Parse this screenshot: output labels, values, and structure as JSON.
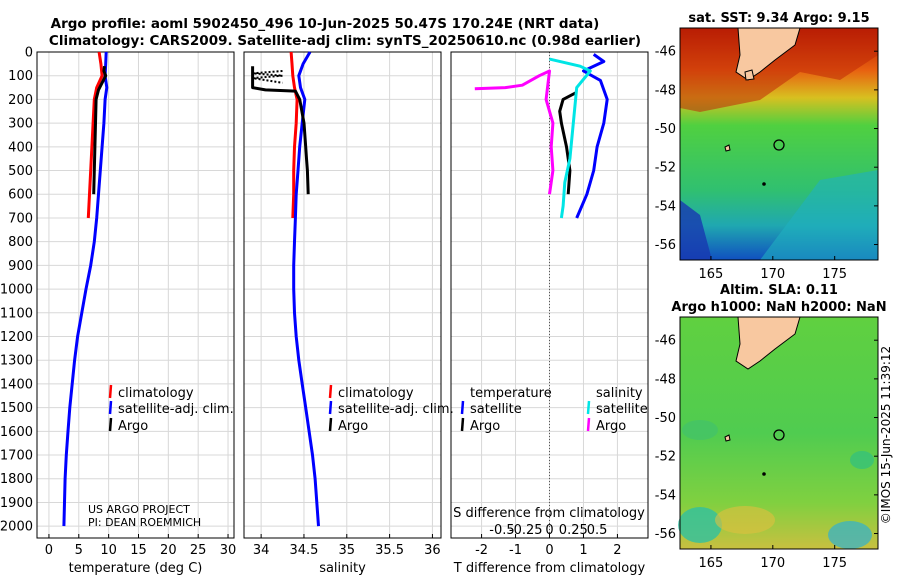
{
  "title": {
    "line1": "Argo profile: aoml 5902450_496 10-Jun-2025 50.47S 170.24E (NRT data)",
    "line2": "Climatology: CARS2009. Satellite-adj clim: synTS_20250610.nc (0.98d earlier)"
  },
  "credit": {
    "project": "US ARGO PROJECT",
    "pi": "PI: DEAN ROEMMICH"
  },
  "stamp": "©IMOS 15-Jun-2025 11:39:12",
  "colors": {
    "climatology": "#ff0000",
    "satellite": "#0000ff",
    "argo": "#000000",
    "sat_s": "#00e5e5",
    "argo_s": "#ff00ff"
  },
  "chart_data": [
    {
      "type": "line",
      "name": "temperature-profile",
      "xlabel": "temperature (deg C)",
      "ylabel": "",
      "xlim": [
        -2,
        31
      ],
      "ylim": [
        2050,
        0
      ],
      "xticks": [
        0,
        5,
        10,
        15,
        20,
        25,
        30
      ],
      "yticks": [
        0,
        100,
        200,
        300,
        400,
        500,
        600,
        700,
        800,
        900,
        1000,
        1100,
        1200,
        1300,
        1400,
        1500,
        1600,
        1700,
        1800,
        1900,
        2000
      ],
      "grid": true,
      "legend": [
        "climatology",
        "satellite-adj. clim.",
        "Argo"
      ],
      "series": [
        {
          "name": "climatology",
          "color": "#ff0000",
          "x": [
            8.4,
            8.7,
            8.9,
            8.0,
            7.6,
            7.4,
            7.2,
            7.0,
            6.8,
            6.6
          ],
          "y": [
            0,
            50,
            100,
            150,
            200,
            300,
            400,
            500,
            600,
            700
          ]
        },
        {
          "name": "satellite-adj. clim.",
          "color": "#0000ff",
          "x": [
            9.6,
            9.5,
            9.4,
            9.7,
            9.4,
            9.2,
            8.9,
            8.6,
            8.3,
            8.0,
            7.6,
            7.0,
            6.2,
            5.5,
            4.8,
            4.3,
            3.9,
            3.5,
            3.2,
            2.9,
            2.7,
            2.5
          ],
          "y": [
            0,
            50,
            100,
            150,
            200,
            300,
            400,
            500,
            600,
            700,
            800,
            900,
            1000,
            1100,
            1200,
            1300,
            1400,
            1500,
            1600,
            1700,
            1800,
            2000
          ]
        },
        {
          "name": "Argo",
          "color": "#000000",
          "x": [
            9.3,
            9.2,
            9.5,
            8.3,
            7.9,
            7.8,
            7.7,
            7.6,
            7.5
          ],
          "y": [
            60,
            80,
            100,
            160,
            200,
            300,
            400,
            500,
            600
          ]
        }
      ]
    },
    {
      "type": "line",
      "name": "salinity-profile",
      "xlabel": "salinity",
      "xlim": [
        33.8,
        36.1
      ],
      "ylim": [
        2050,
        0
      ],
      "xticks": [
        34,
        34.5,
        35,
        35.5,
        36
      ],
      "xticklabels": [
        "34",
        "34.5",
        "35",
        "35.5",
        "36"
      ],
      "grid": true,
      "legend": [
        "climatology",
        "satellite-adj. clim.",
        "Argo"
      ],
      "series": [
        {
          "name": "climatology",
          "color": "#ff0000",
          "x": [
            34.35,
            34.36,
            34.37,
            34.39,
            34.42,
            34.41,
            34.39,
            34.38,
            34.38,
            34.37
          ],
          "y": [
            0,
            50,
            100,
            150,
            200,
            300,
            400,
            500,
            600,
            700
          ]
        },
        {
          "name": "satellite-adj. clim.",
          "color": "#0000ff",
          "x": [
            34.57,
            34.49,
            34.44,
            34.46,
            34.51,
            34.48,
            34.45,
            34.43,
            34.41,
            34.4,
            34.39,
            34.38,
            34.38,
            34.39,
            34.41,
            34.44,
            34.48,
            34.52,
            34.56,
            34.6,
            34.63,
            34.67
          ],
          "y": [
            0,
            50,
            100,
            150,
            200,
            300,
            400,
            500,
            600,
            700,
            800,
            900,
            1000,
            1100,
            1200,
            1300,
            1400,
            1500,
            1600,
            1700,
            1800,
            2000
          ]
        },
        {
          "name": "Argo",
          "color": "#000000",
          "x": [
            33.9,
            33.9,
            34.05,
            34.4,
            34.45,
            34.5,
            34.52,
            34.53,
            34.54,
            34.55
          ],
          "y": [
            60,
            150,
            160,
            165,
            200,
            300,
            400,
            450,
            500,
            600
          ]
        },
        {
          "name": "Argo-upper",
          "color": "#000000",
          "dashed": true,
          "x": [
            34.25,
            33.9,
            34.25,
            33.9,
            34.25
          ],
          "y": [
            80,
            90,
            100,
            110,
            130
          ]
        }
      ]
    },
    {
      "type": "line",
      "name": "difference-profile",
      "xlabel": "T difference from climatology",
      "x2label": "S difference from climatology",
      "xlim": [
        -2.9,
        2.9
      ],
      "ylim": [
        2050,
        0
      ],
      "xticks": [
        -2,
        -1,
        0,
        1,
        2
      ],
      "xticklabels": [
        "-2",
        "-1",
        "0",
        "1",
        "2"
      ],
      "s_ticklabels": [
        "-0.5",
        "-0.25",
        "0",
        "0.25",
        "0.5"
      ],
      "grid": true,
      "legend_titles": [
        "temperature",
        "salinity"
      ],
      "legend": [
        "satellite",
        "Argo",
        "satellite",
        "Argo"
      ],
      "series": [
        {
          "name": "temperature satellite",
          "color": "#0000ff",
          "x": [
            1.3,
            1.6,
            1.0,
            1.5,
            1.7,
            1.6,
            1.4,
            1.3,
            1.2,
            1.1,
            0.8
          ],
          "y": [
            10,
            40,
            80,
            120,
            200,
            300,
            400,
            500,
            550,
            600,
            700
          ]
        },
        {
          "name": "temperature Argo",
          "color": "#000000",
          "x": [
            0.8,
            0.4,
            0.3,
            0.35,
            0.5,
            0.6,
            0.55
          ],
          "y": [
            170,
            200,
            250,
            300,
            400,
            500,
            600
          ]
        },
        {
          "name": "salinity satellite",
          "color": "#00e5e5",
          "x": [
            0.0,
            0.9,
            1.2,
            0.8,
            0.7,
            0.6,
            0.45,
            0.4,
            0.35
          ],
          "y": [
            30,
            60,
            80,
            150,
            300,
            450,
            550,
            650,
            700
          ]
        },
        {
          "name": "salinity Argo",
          "color": "#ff00ff",
          "x": [
            -2.2,
            -1.3,
            -0.8,
            -0.3,
            0.0,
            -0.1,
            0.1,
            0.05,
            0.1,
            0.0
          ],
          "y": [
            155,
            150,
            140,
            100,
            80,
            200,
            300,
            400,
            500,
            600
          ]
        }
      ]
    },
    {
      "type": "heatmap",
      "name": "sst-map",
      "title": "sat. SST: 9.34 Argo: 9.15",
      "xlim": [
        162.5,
        178.5
      ],
      "ylim": [
        -56.8,
        -44.8
      ],
      "xticks": [
        165,
        170,
        175
      ],
      "xticklabels": [
        "165",
        "170",
        "175"
      ],
      "yticks": [
        -46,
        -48,
        -50,
        -52,
        -54,
        -56
      ],
      "yticklabels": [
        "-46",
        "-48",
        "-50",
        "-52",
        "-54",
        "-56"
      ],
      "argo_position": [
        170.24,
        -50.47
      ]
    },
    {
      "type": "heatmap",
      "name": "sla-map",
      "title": "Altim. SLA: 0.11",
      "subtitle": "Argo h1000: NaN h2000: NaN",
      "xlim": [
        162.5,
        178.5
      ],
      "ylim": [
        -56.8,
        -44.8
      ],
      "xticks": [
        165,
        170,
        175
      ],
      "xticklabels": [
        "165",
        "170",
        "175"
      ],
      "yticks": [
        -46,
        -48,
        -50,
        -52,
        -54,
        -56
      ],
      "yticklabels": [
        "-46",
        "-48",
        "-50",
        "-52",
        "-54",
        "-56"
      ],
      "argo_position": [
        170.24,
        -50.47
      ]
    }
  ]
}
